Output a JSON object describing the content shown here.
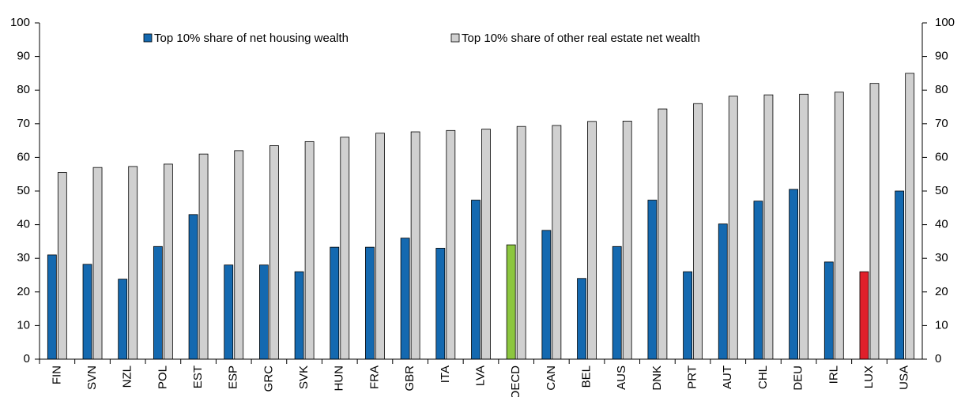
{
  "chart_data": {
    "type": "bar",
    "categories": [
      "FIN",
      "SVN",
      "NZL",
      "POL",
      "EST",
      "ESP",
      "GRC",
      "SVK",
      "HUN",
      "FRA",
      "GBR",
      "ITA",
      "LVA",
      "OECD",
      "CAN",
      "BEL",
      "AUS",
      "DNK",
      "PRT",
      "AUT",
      "CHL",
      "DEU",
      "IRL",
      "LUX",
      "USA"
    ],
    "series": [
      {
        "name": "Top 10% share of net housing wealth",
        "color": "#1469b0",
        "colors": [
          "#1469b0",
          "#1469b0",
          "#1469b0",
          "#1469b0",
          "#1469b0",
          "#1469b0",
          "#1469b0",
          "#1469b0",
          "#1469b0",
          "#1469b0",
          "#1469b0",
          "#1469b0",
          "#1469b0",
          "#8cc63f",
          "#1469b0",
          "#1469b0",
          "#1469b0",
          "#1469b0",
          "#1469b0",
          "#1469b0",
          "#1469b0",
          "#1469b0",
          "#1469b0",
          "#e0202b",
          "#1469b0"
        ],
        "values": [
          31,
          28.2,
          23.8,
          33.5,
          43,
          28,
          28,
          26,
          33.3,
          33.3,
          36,
          33,
          47.3,
          34,
          38.3,
          24,
          33.5,
          47.3,
          26,
          40.2,
          47,
          50.5,
          28.9,
          26,
          50
        ]
      },
      {
        "name": "Top 10% share of other real estate net wealth",
        "color": "#d0d0d0",
        "values": [
          55.5,
          57,
          57.3,
          58,
          61,
          62,
          63.5,
          64.7,
          66,
          67.2,
          67.6,
          68,
          68.4,
          69.2,
          69.5,
          70.7,
          70.8,
          74.4,
          76,
          78.2,
          78.6,
          78.8,
          79.4,
          82,
          85
        ]
      }
    ],
    "ylim": [
      0,
      100
    ],
    "yticks": [
      0,
      10,
      20,
      30,
      40,
      50,
      60,
      70,
      80,
      90,
      100
    ],
    "y2lim": [
      0,
      100
    ],
    "y2ticks": [
      0,
      10,
      20,
      30,
      40,
      50,
      60,
      70,
      80,
      90,
      100
    ],
    "legend": "top"
  }
}
